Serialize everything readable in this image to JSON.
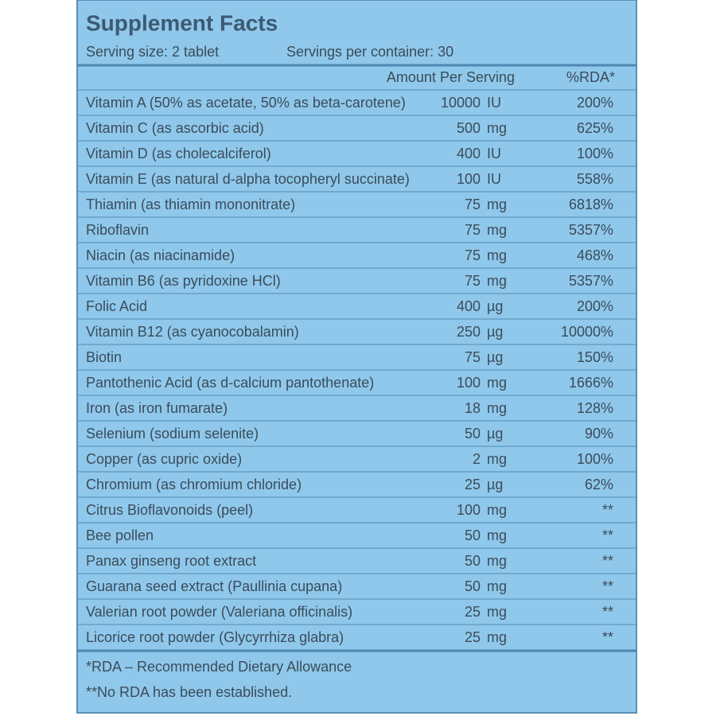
{
  "header": {
    "title": "Supplement Facts",
    "serving_size": "Serving size: 2 tablet",
    "servings_per_container": "Servings per container: 30"
  },
  "table": {
    "columns": [
      "Amount Per Serving",
      "%RDA*"
    ],
    "rows": [
      [
        "Vitamin A (50% as acetate, 50% as beta-carotene)",
        "10000",
        "IU",
        "200%"
      ],
      [
        "Vitamin C (as ascorbic acid)",
        "500",
        "mg",
        "625%"
      ],
      [
        "Vitamin D (as cholecalciferol)",
        "400",
        "IU",
        "100%"
      ],
      [
        "Vitamin E (as natural d-alpha tocopheryl succinate)",
        "100",
        "IU",
        "558%"
      ],
      [
        "Thiamin (as thiamin mononitrate)",
        "75",
        "mg",
        "6818%"
      ],
      [
        "Riboflavin",
        "75",
        "mg",
        "5357%"
      ],
      [
        "Niacin (as niacinamide)",
        "75",
        "mg",
        "468%"
      ],
      [
        "Vitamin B6 (as pyridoxine HCl)",
        "75",
        "mg",
        "5357%"
      ],
      [
        "Folic Acid",
        "400",
        "µg",
        "200%"
      ],
      [
        "Vitamin B12 (as cyanocobalamin)",
        "250",
        "µg",
        "10000%"
      ],
      [
        "Biotin",
        "75",
        "µg",
        "150%"
      ],
      [
        "Pantothenic Acid (as d-calcium pantothenate)",
        "100",
        "mg",
        "1666%"
      ],
      [
        "Iron (as iron fumarate)",
        "18",
        "mg",
        "128%"
      ],
      [
        "Selenium (sodium selenite)",
        "50",
        "µg",
        "90%"
      ],
      [
        "Copper (as cupric oxide)",
        "2",
        "mg",
        "100%"
      ],
      [
        "Chromium (as chromium chloride)",
        "25",
        "µg",
        "62%"
      ],
      [
        "Citrus Bioflavonoids (peel)",
        "100",
        "mg",
        "**"
      ],
      [
        "Bee pollen",
        "50",
        "mg",
        "**"
      ],
      [
        "Panax ginseng root extract",
        "50",
        "mg",
        "**"
      ],
      [
        "Guarana seed extract (Paullinia cupana)",
        "50",
        "mg",
        "**"
      ],
      [
        "Valerian root powder (Valeriana officinalis)",
        "25",
        "mg",
        "**"
      ],
      [
        "Licorice root powder (Glycyrrhiza glabra)",
        "25",
        "mg",
        "**"
      ]
    ]
  },
  "footnotes": [
    "*RDA – Recommended Dietary Allowance",
    "**No RDA has been established."
  ]
}
